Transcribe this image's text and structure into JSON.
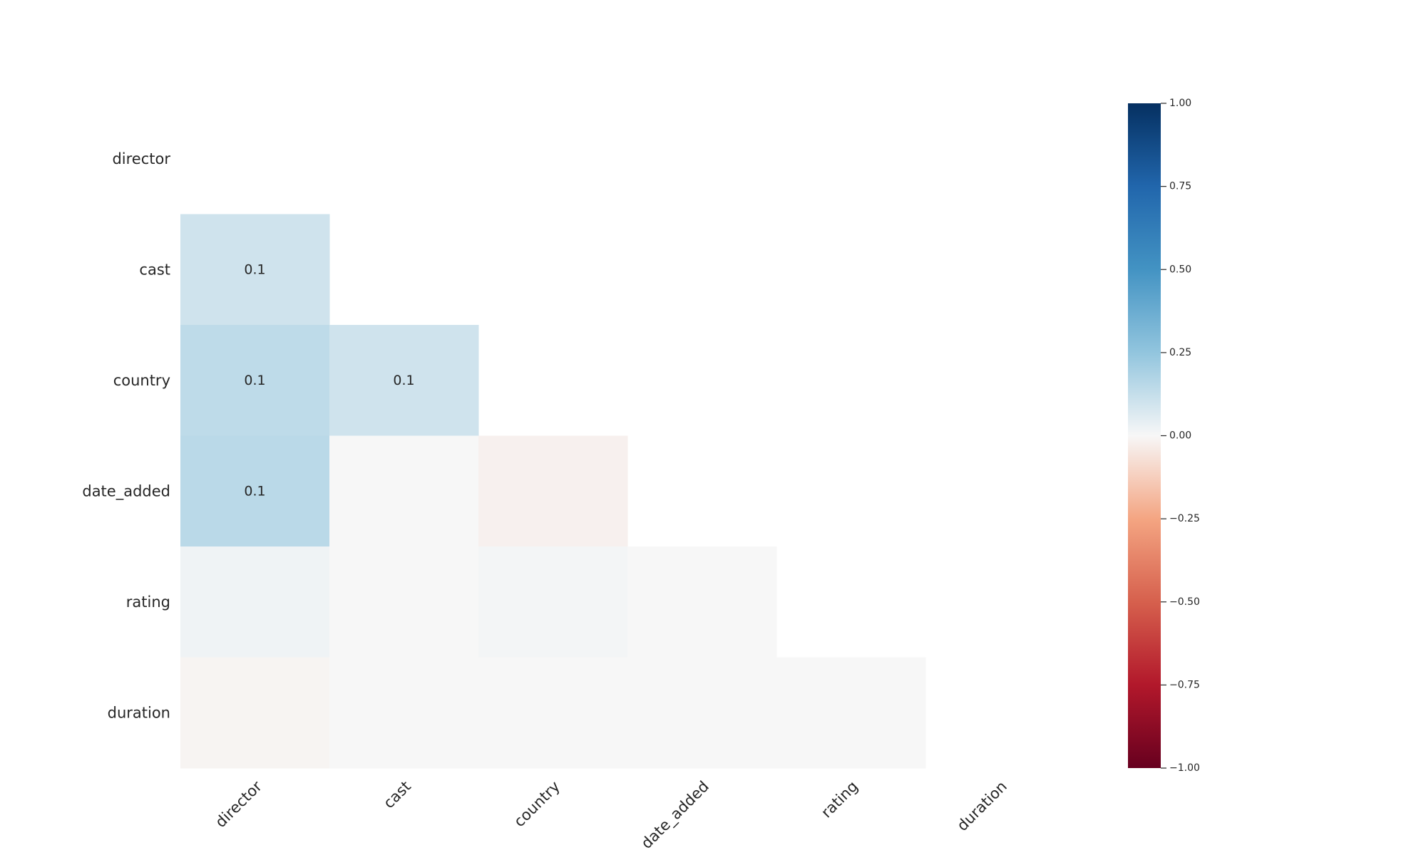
{
  "chart_data": {
    "type": "heatmap",
    "title": "",
    "xlabel": "",
    "ylabel": "",
    "variables": [
      "director",
      "cast",
      "country",
      "date_added",
      "rating",
      "duration"
    ],
    "x_tick_labels": [
      "director",
      "cast",
      "country",
      "date_added",
      "rating",
      "duration"
    ],
    "y_tick_labels": [
      "director",
      "cast",
      "country",
      "date_added",
      "rating",
      "duration"
    ],
    "mask": "upper-triangle-including-diagonal",
    "cells": [
      {
        "row": "cast",
        "col": "director",
        "value": 0.1,
        "label": "0.1"
      },
      {
        "row": "country",
        "col": "director",
        "value": 0.14,
        "label": "0.1"
      },
      {
        "row": "country",
        "col": "cast",
        "value": 0.1,
        "label": "0.1"
      },
      {
        "row": "date_added",
        "col": "director",
        "value": 0.15,
        "label": "0.1"
      },
      {
        "row": "date_added",
        "col": "cast",
        "value": 0.0,
        "label": ""
      },
      {
        "row": "date_added",
        "col": "country",
        "value": -0.02,
        "label": ""
      },
      {
        "row": "rating",
        "col": "director",
        "value": 0.02,
        "label": ""
      },
      {
        "row": "rating",
        "col": "cast",
        "value": 0.0,
        "label": ""
      },
      {
        "row": "rating",
        "col": "country",
        "value": 0.01,
        "label": ""
      },
      {
        "row": "rating",
        "col": "date_added",
        "value": 0.0,
        "label": ""
      },
      {
        "row": "duration",
        "col": "director",
        "value": -0.01,
        "label": ""
      },
      {
        "row": "duration",
        "col": "cast",
        "value": 0.0,
        "label": ""
      },
      {
        "row": "duration",
        "col": "country",
        "value": 0.0,
        "label": ""
      },
      {
        "row": "duration",
        "col": "date_added",
        "value": 0.0,
        "label": ""
      },
      {
        "row": "duration",
        "col": "rating",
        "value": 0.0,
        "label": ""
      }
    ],
    "colorbar": {
      "colormap": "RdBu",
      "range": [
        -1.0,
        1.0
      ],
      "ticks": [
        1.0,
        0.75,
        0.5,
        0.25,
        0.0,
        -0.25,
        -0.5,
        -0.75,
        -1.0
      ],
      "tick_labels": [
        "1.00",
        "0.75",
        "0.50",
        "0.25",
        "0.00",
        "−0.25",
        "−0.50",
        "−0.75",
        "−1.00"
      ]
    },
    "grid": false,
    "legend": "colorbar-right"
  }
}
